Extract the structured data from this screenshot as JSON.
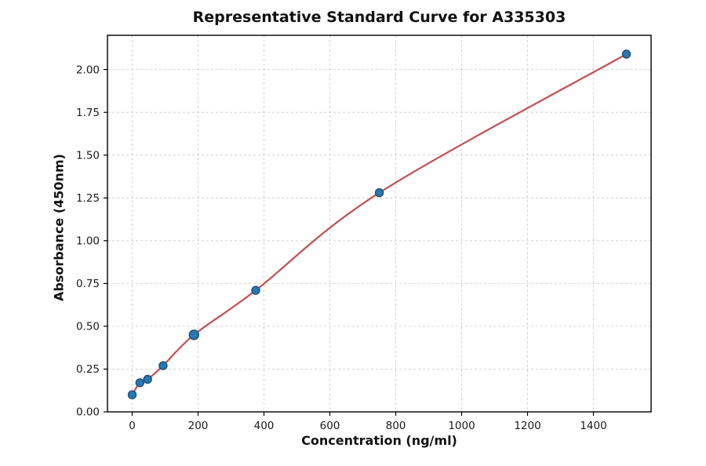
{
  "chart_data": {
    "type": "scatter",
    "title": "Representative Standard Curve for A335303",
    "xlabel": "Concentration (ng/ml)",
    "ylabel": "Absorbance (450nm)",
    "xlim": [
      -75,
      1575
    ],
    "ylim": [
      0,
      2.2
    ],
    "xticks": [
      0,
      200,
      400,
      600,
      800,
      1000,
      1200,
      1400
    ],
    "yticks": [
      0,
      0.25,
      0.5,
      0.75,
      1,
      1.25,
      1.5,
      1.75,
      2
    ],
    "grid": true,
    "legend_position": "none",
    "points": [
      {
        "x": 0,
        "y": 0.1,
        "r": 5
      },
      {
        "x": 23.4,
        "y": 0.17,
        "r": 5
      },
      {
        "x": 46.9,
        "y": 0.19,
        "r": 5
      },
      {
        "x": 93.8,
        "y": 0.27,
        "r": 5
      },
      {
        "x": 187.5,
        "y": 0.45,
        "r": 6
      },
      {
        "x": 375,
        "y": 0.71,
        "r": 5
      },
      {
        "x": 750,
        "y": 1.28,
        "r": 5
      },
      {
        "x": 1500,
        "y": 2.09,
        "r": 5
      }
    ],
    "curve_color": "#c44e52",
    "point_color": "#2878b5",
    "point_edge_color": "#1b4f72"
  }
}
